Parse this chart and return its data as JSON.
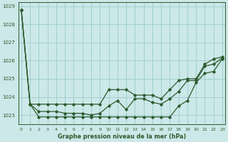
{
  "xlabel": "Graphe pression niveau de la mer (hPa)",
  "ylim": [
    1022.5,
    1029.2
  ],
  "xlim": [
    -0.3,
    23.3
  ],
  "yticks": [
    1023,
    1024,
    1025,
    1026,
    1027,
    1028,
    1029
  ],
  "xticks": [
    0,
    1,
    2,
    3,
    4,
    5,
    6,
    7,
    8,
    9,
    10,
    11,
    12,
    13,
    14,
    15,
    16,
    17,
    18,
    19,
    20,
    21,
    22,
    23
  ],
  "bg_color": "#cce8e8",
  "grid_color": "#99cccc",
  "line_color": "#2d5a2d",
  "hours": [
    0,
    1,
    2,
    3,
    4,
    5,
    6,
    7,
    8,
    9,
    10,
    11,
    12,
    13,
    14,
    15,
    16,
    17,
    18,
    19,
    20,
    21,
    22,
    23
  ],
  "series_high": [
    1028.8,
    1023.6,
    1023.6,
    1023.6,
    1023.6,
    1023.6,
    1023.6,
    1023.6,
    1023.6,
    1023.6,
    1024.4,
    1024.4,
    1024.4,
    1024.1,
    1024.1,
    1024.1,
    1023.9,
    1024.4,
    1024.9,
    1025.0,
    1025.0,
    1025.8,
    1026.1,
    1026.2
  ],
  "series_low": [
    1028.8,
    1023.6,
    1022.9,
    1022.9,
    1022.9,
    1022.9,
    1022.9,
    1022.9,
    1022.9,
    1022.9,
    1022.9,
    1022.9,
    1022.9,
    1022.9,
    1022.9,
    1022.9,
    1022.9,
    1022.9,
    1023.5,
    1023.8,
    1024.8,
    1025.3,
    1025.4,
    1026.1
  ],
  "series_mean": [
    1028.8,
    1023.6,
    1023.2,
    1023.2,
    1023.2,
    1023.1,
    1023.1,
    1023.1,
    1023.0,
    1023.1,
    1023.5,
    1023.8,
    1023.3,
    1023.9,
    1023.9,
    1023.7,
    1023.6,
    1023.9,
    1024.3,
    1024.9,
    1024.9,
    1025.7,
    1025.8,
    1026.15
  ]
}
